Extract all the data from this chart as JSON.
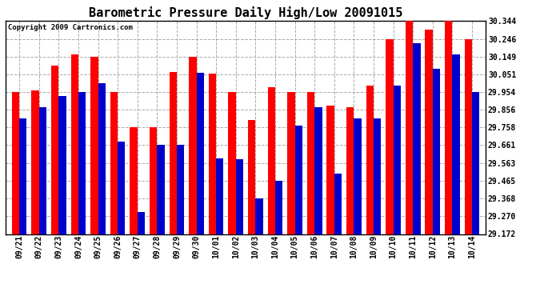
{
  "title": "Barometric Pressure Daily High/Low 20091015",
  "copyright": "Copyright 2009 Cartronics.com",
  "dates": [
    "09/21",
    "09/22",
    "09/23",
    "09/24",
    "09/25",
    "09/26",
    "09/27",
    "09/28",
    "09/29",
    "09/30",
    "10/01",
    "10/02",
    "10/03",
    "10/04",
    "10/05",
    "10/06",
    "10/07",
    "10/08",
    "10/09",
    "10/10",
    "10/11",
    "10/12",
    "10/13",
    "10/14"
  ],
  "highs": [
    29.954,
    29.962,
    30.1,
    30.16,
    30.149,
    29.954,
    29.758,
    29.758,
    30.065,
    30.149,
    30.055,
    29.954,
    29.8,
    29.98,
    29.954,
    29.954,
    29.88,
    29.87,
    29.99,
    30.246,
    30.344,
    30.295,
    30.344,
    30.246
  ],
  "lows": [
    29.808,
    29.87,
    29.93,
    29.954,
    30.0,
    29.68,
    29.295,
    29.661,
    29.661,
    30.06,
    29.59,
    29.583,
    29.368,
    29.465,
    29.77,
    29.87,
    29.505,
    29.808,
    29.808,
    29.99,
    30.22,
    30.08,
    30.16,
    29.954
  ],
  "ylim_min": 29.172,
  "ylim_max": 30.344,
  "yticks": [
    29.172,
    29.27,
    29.368,
    29.465,
    29.563,
    29.661,
    29.758,
    29.856,
    29.954,
    30.051,
    30.149,
    30.246,
    30.344
  ],
  "high_color": "#ff0000",
  "low_color": "#0000cc",
  "bg_color": "#ffffff",
  "grid_color": "#aaaaaa",
  "title_fontsize": 11,
  "bar_width": 0.38,
  "fig_width": 6.9,
  "fig_height": 3.75,
  "dpi": 100
}
